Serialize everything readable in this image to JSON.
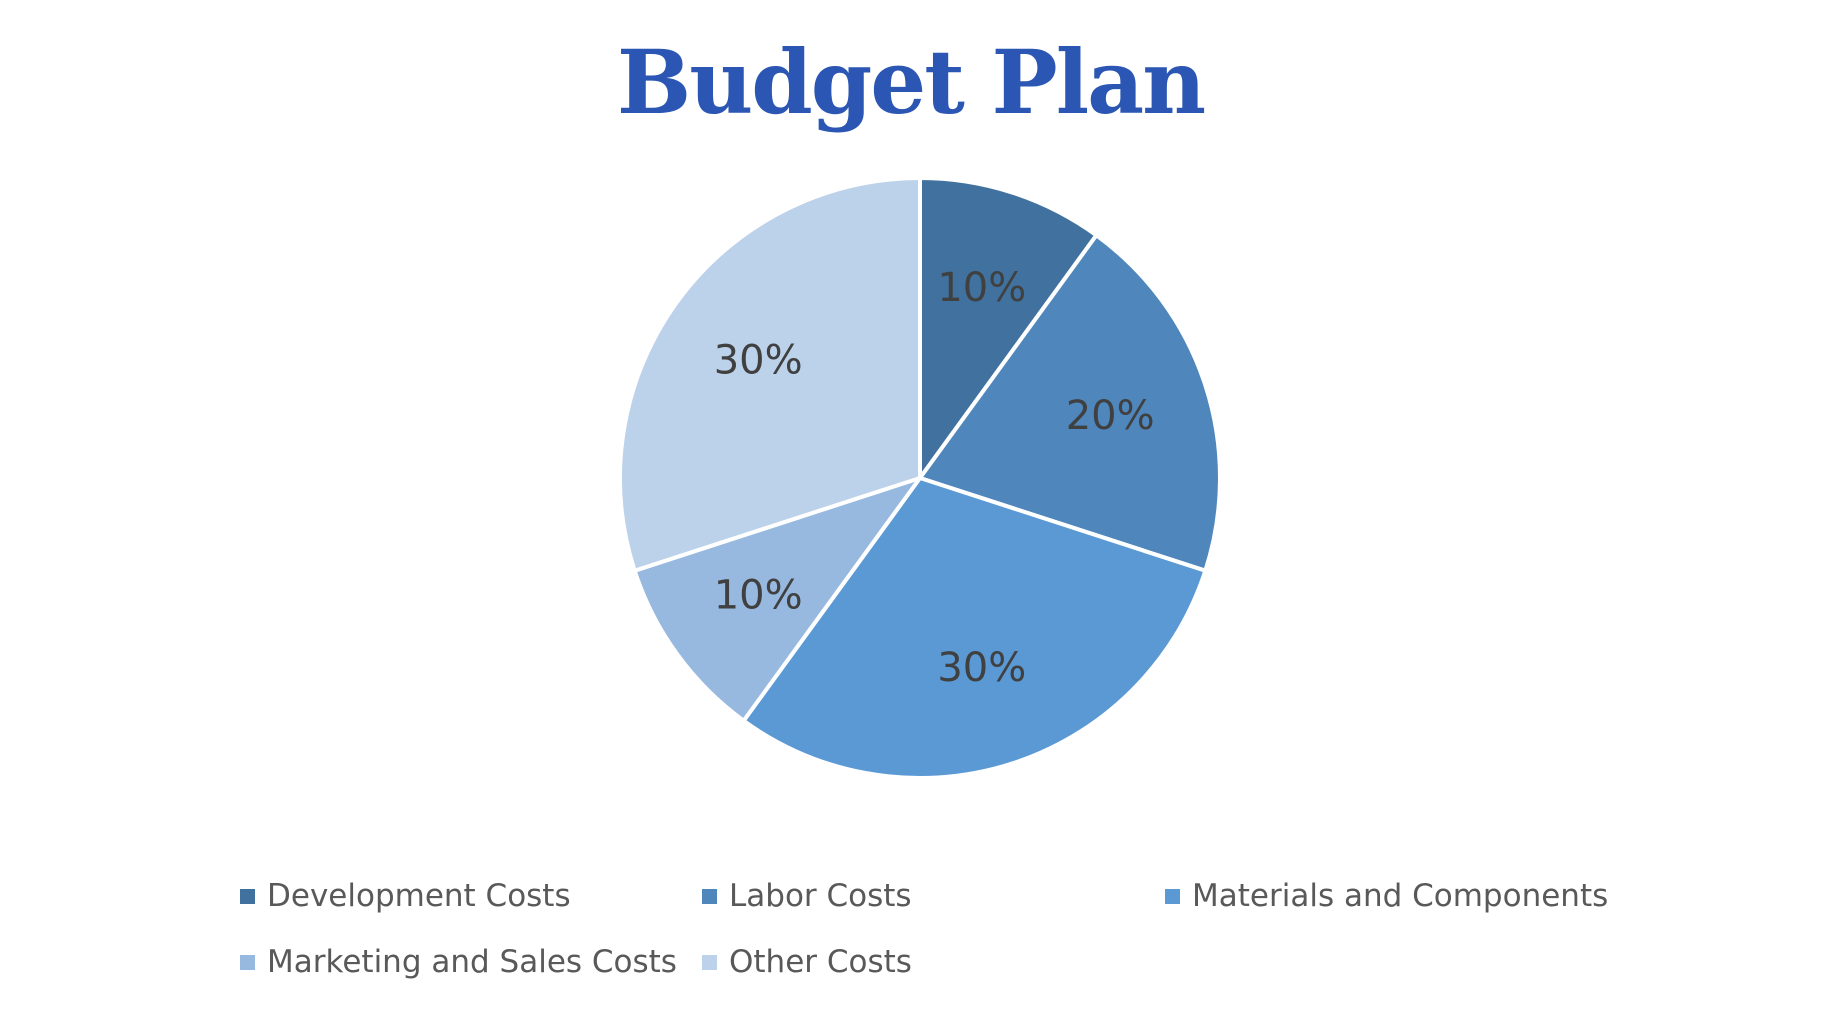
{
  "chart_data": {
    "type": "pie",
    "title": "Budget Plan",
    "title_color": "#2b56b3",
    "categories": [
      "Development Costs",
      "Labor Costs",
      "Materials and Components",
      "Marketing and Sales Costs",
      "Other Costs"
    ],
    "values": [
      10,
      20,
      30,
      10,
      30
    ],
    "data_labels": [
      "10%",
      "20%",
      "30%",
      "10%",
      "30%"
    ],
    "colors": [
      "#41729f",
      "#4f87bd",
      "#5a99d4",
      "#97b9e0",
      "#bcd1ea"
    ],
    "legend_position": "bottom"
  }
}
